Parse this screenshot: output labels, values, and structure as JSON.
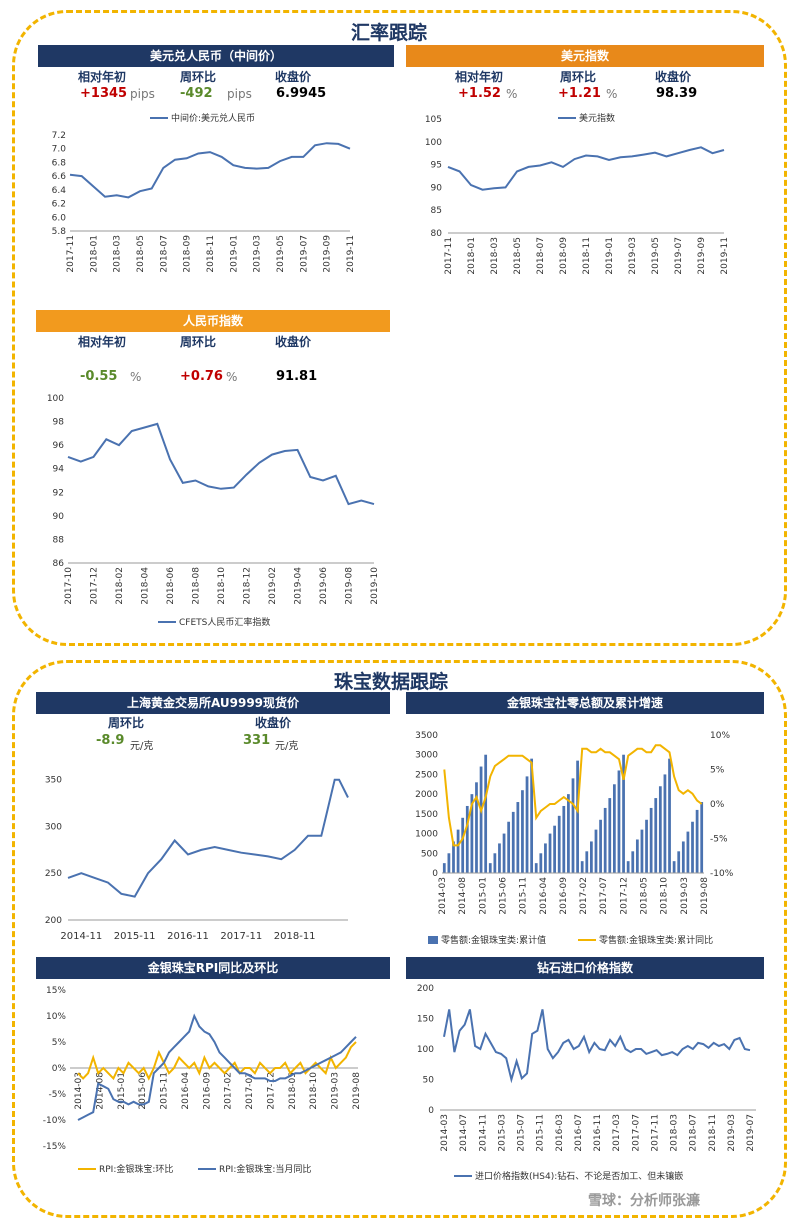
{
  "fx_section": {
    "title": "汇率跟踪"
  },
  "jewelry_section": {
    "title": "珠宝数据跟踪"
  },
  "usdcny": {
    "header": "美元兑人民币（中间价）",
    "labels": [
      "相对年初",
      "周环比",
      "收盘价"
    ],
    "ytd": "+1345",
    "ytd_unit": "pips",
    "wow": "-492",
    "wow_unit": "pips",
    "close": "6.9945"
  },
  "dxy": {
    "header": "美元指数",
    "labels": [
      "相对年初",
      "周环比",
      "收盘价"
    ],
    "ytd": "+1.52",
    "ytd_unit": "%",
    "wow": "+1.21",
    "wow_unit": "%",
    "close": "98.39"
  },
  "cfets": {
    "header": "人民币指数",
    "labels": [
      "相对年初",
      "周环比",
      "收盘价"
    ],
    "ytd": "-0.55",
    "ytd_unit": "%",
    "wow": "+0.76",
    "wow_unit": "%",
    "close": "91.81"
  },
  "gold": {
    "header": "上海黄金交易所AU9999现货价",
    "labels": [
      "周环比",
      "收盘价"
    ],
    "wow": "-8.9",
    "wow_unit": "元/克",
    "close": "331",
    "close_unit": "元/克"
  },
  "retail": {
    "header": "金银珠宝社零总额及累计增速"
  },
  "rpi": {
    "header": "金银珠宝RPI同比及环比"
  },
  "diamond": {
    "header": "钻石进口价格指数"
  },
  "watermark": "雪球：分析师张濂",
  "colors": {
    "navy": "#1f3864",
    "orange": "#e8891a",
    "line_blue": "#4a72b0",
    "line_yellow": "#f2b400",
    "bar_blue": "#4a72b0"
  },
  "chart_data": [
    {
      "id": "usdcny",
      "type": "line",
      "legend": "中间价:美元兑人民币",
      "ylim": [
        5.8,
        7.2
      ],
      "yticks": [
        5.8,
        6.0,
        6.2,
        6.4,
        6.6,
        6.8,
        7.0,
        7.2
      ],
      "xlim": [
        "2017-11",
        "2019-11"
      ],
      "xticks": [
        "2017-11",
        "2018-01",
        "2018-03",
        "2018-05",
        "2018-07",
        "2018-09",
        "2018-11",
        "2019-01",
        "2019-03",
        "2019-05",
        "2019-07",
        "2019-09",
        "2019-11"
      ],
      "series": [
        {
          "x": [
            "2017-11",
            "2017-12",
            "2018-01",
            "2018-02",
            "2018-03",
            "2018-04",
            "2018-05",
            "2018-06",
            "2018-07",
            "2018-08",
            "2018-09",
            "2018-10",
            "2018-11",
            "2018-12",
            "2019-01",
            "2019-02",
            "2019-03",
            "2019-04",
            "2019-05",
            "2019-06",
            "2019-07",
            "2019-08",
            "2019-09",
            "2019-10",
            "2019-11"
          ],
          "y": [
            6.62,
            6.6,
            6.45,
            6.3,
            6.32,
            6.29,
            6.38,
            6.42,
            6.72,
            6.84,
            6.86,
            6.93,
            6.95,
            6.88,
            6.76,
            6.72,
            6.71,
            6.72,
            6.82,
            6.88,
            6.88,
            7.05,
            7.08,
            7.07,
            7.0
          ]
        }
      ]
    },
    {
      "id": "dxy",
      "type": "line",
      "legend": "美元指数",
      "ylim": [
        80,
        105
      ],
      "yticks": [
        80,
        85,
        90,
        95,
        100,
        105
      ],
      "xlim": [
        "2017-11",
        "2019-11"
      ],
      "xticks": [
        "2017-11",
        "2018-01",
        "2018-03",
        "2018-05",
        "2018-07",
        "2018-09",
        "2018-11",
        "2019-01",
        "2019-03",
        "2019-05",
        "2019-07",
        "2019-09",
        "2019-11"
      ],
      "series": [
        {
          "x": [
            "2017-11",
            "2017-12",
            "2018-01",
            "2018-02",
            "2018-03",
            "2018-04",
            "2018-05",
            "2018-06",
            "2018-07",
            "2018-08",
            "2018-09",
            "2018-10",
            "2018-11",
            "2018-12",
            "2019-01",
            "2019-02",
            "2019-03",
            "2019-04",
            "2019-05",
            "2019-06",
            "2019-07",
            "2019-08",
            "2019-09",
            "2019-10",
            "2019-11"
          ],
          "y": [
            94.5,
            93.5,
            90.5,
            89.5,
            89.8,
            90.0,
            93.5,
            94.5,
            94.8,
            95.5,
            94.5,
            96.2,
            97.0,
            96.8,
            96.0,
            96.6,
            96.8,
            97.2,
            97.6,
            96.8,
            97.5,
            98.2,
            98.8,
            97.5,
            98.2
          ]
        }
      ]
    },
    {
      "id": "cfets",
      "type": "line",
      "legend": "CFETS人民币汇率指数",
      "ylim": [
        86,
        100
      ],
      "yticks": [
        86,
        88,
        90,
        92,
        94,
        96,
        98,
        100
      ],
      "xlim": [
        "2017-10",
        "2019-10"
      ],
      "xticks": [
        "2017-10",
        "2017-12",
        "2018-02",
        "2018-04",
        "2018-06",
        "2018-08",
        "2018-10",
        "2018-12",
        "2019-02",
        "2019-04",
        "2019-06",
        "2019-08",
        "2019-10"
      ],
      "series": [
        {
          "x": [
            "2017-10",
            "2017-11",
            "2017-12",
            "2018-01",
            "2018-02",
            "2018-03",
            "2018-04",
            "2018-05",
            "2018-06",
            "2018-07",
            "2018-08",
            "2018-09",
            "2018-10",
            "2018-11",
            "2018-12",
            "2019-01",
            "2019-02",
            "2019-03",
            "2019-04",
            "2019-05",
            "2019-06",
            "2019-07",
            "2019-08",
            "2019-09",
            "2019-10"
          ],
          "y": [
            95.0,
            94.6,
            95.0,
            96.5,
            96.0,
            97.2,
            97.5,
            97.8,
            94.8,
            92.8,
            93.0,
            92.5,
            92.3,
            92.4,
            93.5,
            94.5,
            95.2,
            95.5,
            95.6,
            93.3,
            93.0,
            93.4,
            91.0,
            91.3,
            91.0
          ]
        }
      ]
    },
    {
      "id": "gold",
      "type": "line",
      "ylim": [
        200,
        370
      ],
      "yticks": [
        200,
        250,
        300,
        350
      ],
      "xlim": [
        "2014-08",
        "2019-11"
      ],
      "xticks": [
        "2014-11",
        "2015-11",
        "2016-11",
        "2017-11",
        "2018-11"
      ],
      "series": [
        {
          "x": [
            "2014-08",
            "2014-11",
            "2015-02",
            "2015-05",
            "2015-08",
            "2015-11",
            "2016-02",
            "2016-05",
            "2016-08",
            "2016-11",
            "2017-02",
            "2017-05",
            "2017-08",
            "2017-11",
            "2018-02",
            "2018-05",
            "2018-08",
            "2018-11",
            "2019-02",
            "2019-05",
            "2019-06",
            "2019-08",
            "2019-09",
            "2019-11"
          ],
          "y": [
            245,
            250,
            245,
            240,
            228,
            225,
            250,
            265,
            285,
            270,
            275,
            278,
            275,
            272,
            270,
            268,
            265,
            275,
            290,
            290,
            310,
            350,
            350,
            331
          ]
        }
      ]
    },
    {
      "id": "retail",
      "type": "bar+line",
      "legend": [
        "零售额:金银珠宝类:累计值",
        "零售额:金银珠宝类:累计同比"
      ],
      "ylim_left": [
        0,
        3500
      ],
      "yticks_left": [
        0,
        500,
        1000,
        1500,
        2000,
        2500,
        3000,
        3500
      ],
      "ylim_right": [
        -10,
        10
      ],
      "yticks_right": [
        "-10%",
        "-5%",
        "0%",
        "5%",
        "10%"
      ],
      "xticks": [
        "2014-03",
        "2014-08",
        "2015-01",
        "2015-06",
        "2015-11",
        "2016-04",
        "2016-09",
        "2017-02",
        "2017-07",
        "2017-12",
        "2018-05",
        "2018-10",
        "2019-03",
        "2019-08"
      ],
      "bars": [
        250,
        500,
        800,
        1100,
        1400,
        1700,
        2000,
        2300,
        2700,
        3000,
        250,
        500,
        750,
        1000,
        1300,
        1550,
        1800,
        2100,
        2450,
        2900,
        250,
        500,
        750,
        1000,
        1200,
        1450,
        1700,
        2000,
        2400,
        2850,
        300,
        550,
        800,
        1100,
        1350,
        1650,
        1900,
        2250,
        2600,
        3000,
        300,
        550,
        850,
        1100,
        1350,
        1650,
        1900,
        2200,
        2500,
        2900,
        300,
        550,
        800,
        1050,
        1300,
        1600,
        1800
      ],
      "line": [
        5,
        -2,
        -6,
        -6,
        -5,
        -3,
        0,
        1,
        -1,
        1,
        4,
        5.5,
        6,
        6.5,
        7,
        7,
        7,
        7,
        6.5,
        6,
        -2,
        -1,
        -0.5,
        0,
        0,
        0.5,
        1,
        0.5,
        0,
        -1,
        8,
        8,
        7.5,
        7.5,
        8,
        7.5,
        7.5,
        7,
        6.5,
        3.5,
        7,
        7.5,
        8,
        8,
        7.5,
        7.5,
        8.5,
        8.5,
        8,
        7.5,
        4,
        2,
        1.5,
        2,
        1.5,
        0.5,
        0
      ]
    },
    {
      "id": "rpi",
      "type": "line",
      "legend": [
        "RPI:金银珠宝:环比",
        "RPI:金银珠宝:当月同比"
      ],
      "ylim": [
        -15,
        15
      ],
      "yticks": [
        "-15%",
        "-10%",
        "-5%",
        "0%",
        "5%",
        "10%",
        "15%"
      ],
      "xticks": [
        "2014-03",
        "2014-08",
        "2015-01",
        "2015-06",
        "2015-11",
        "2016-04",
        "2016-09",
        "2017-02",
        "2017-07",
        "2017-12",
        "2018-05",
        "2018-10",
        "2019-03",
        "2019-08"
      ],
      "series": [
        {
          "name": "RPI:金银珠宝:环比",
          "y": [
            -1,
            -2,
            -1,
            2,
            -1,
            0,
            -1,
            -2,
            0,
            -1,
            1,
            0,
            -1,
            0,
            -2,
            0,
            3,
            1,
            -1,
            0,
            2,
            1,
            0,
            1,
            -1,
            2,
            0,
            1,
            0,
            -1,
            0,
            1,
            -1,
            0,
            0,
            -1,
            1,
            0,
            -1,
            0,
            0,
            1,
            -1,
            0,
            1,
            -1,
            0,
            1,
            0,
            -1,
            2,
            0,
            1,
            2,
            4,
            5
          ]
        },
        {
          "name": "RPI:金银珠宝:当月同比",
          "y": [
            -10,
            -9.5,
            -9,
            -8.5,
            -3,
            -3.5,
            -4,
            -6,
            -6.5,
            -6.5,
            -7,
            -6.5,
            -7,
            -7,
            -6.5,
            -1,
            0,
            1,
            3,
            4,
            5,
            6,
            7,
            10,
            8,
            7,
            6.5,
            5,
            3,
            2,
            1,
            0,
            -1,
            -1,
            -1.5,
            -2,
            -2,
            -2,
            -2.5,
            -2.5,
            -2,
            -2,
            -1.5,
            -1,
            -1,
            -0.5,
            0,
            0.5,
            1,
            1.5,
            2,
            2.5,
            3,
            4,
            5,
            6
          ]
        }
      ]
    },
    {
      "id": "diamond",
      "type": "line",
      "legend": "进口价格指数(HS4):钻石、不论是否加工、但未镶嵌",
      "ylim": [
        0,
        200
      ],
      "yticks": [
        0,
        50,
        100,
        150,
        200
      ],
      "xticks": [
        "2014-03",
        "2014-07",
        "2014-11",
        "2015-03",
        "2015-07",
        "2015-11",
        "2016-03",
        "2016-07",
        "2016-11",
        "2017-03",
        "2017-07",
        "2017-11",
        "2018-03",
        "2018-07",
        "2018-11",
        "2019-03",
        "2019-07"
      ],
      "series": [
        {
          "y": [
            120,
            165,
            95,
            130,
            140,
            165,
            105,
            100,
            125,
            110,
            95,
            92,
            85,
            50,
            80,
            52,
            60,
            125,
            130,
            165,
            100,
            85,
            95,
            110,
            115,
            100,
            105,
            120,
            95,
            110,
            100,
            98,
            115,
            105,
            120,
            100,
            95,
            100,
            100,
            92,
            95,
            98,
            90,
            92,
            95,
            90,
            100,
            105,
            100,
            110,
            108,
            102,
            110,
            105,
            108,
            100,
            115,
            118,
            100,
            98
          ]
        }
      ]
    }
  ]
}
